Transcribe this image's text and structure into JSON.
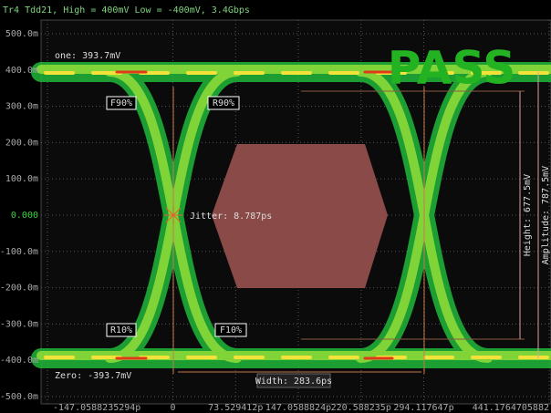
{
  "chart_data": {
    "type": "eye",
    "title": "Tr4 Tdd21, High = 400mV Low = -400mV, 3.4Gbps",
    "xlim": [
      -147.0588235294,
      441.1764705882
    ],
    "xticks": [
      {
        "value": -147.0588235294,
        "label": "-147.0588235294p"
      },
      0,
      {
        "value": 73.529412,
        "label": "73.529412p"
      },
      {
        "value": 147.0588824,
        "label": "147.0588824p"
      },
      {
        "value": 220.588235,
        "label": "220.588235p"
      },
      {
        "value": 294.117647,
        "label": "294.117647p"
      },
      441.1764705882
    ],
    "ylim": [
      -0.5,
      0.5
    ],
    "yticks": [
      {
        "value": 0.5,
        "label": "500.0m"
      },
      {
        "value": 0.4,
        "label": "400.0m"
      },
      {
        "value": 0.3,
        "label": "300.0m"
      },
      {
        "value": 0.2,
        "label": "200.0m"
      },
      {
        "value": 0.1,
        "label": "100.0m"
      },
      {
        "value": 0,
        "label": "0.000"
      },
      {
        "value": -0.1,
        "label": "-100.0m"
      },
      {
        "value": -0.2,
        "label": "-200.0m"
      },
      {
        "value": -0.3,
        "label": "-300.0m"
      },
      {
        "value": -0.4,
        "label": "-400.0m"
      },
      {
        "value": -0.5,
        "label": "-500.0m"
      }
    ],
    "grid": true,
    "annotations": {
      "one_level": "one: 393.7mV",
      "zero_level": "Zero: -393.7mV",
      "f90": "F90%",
      "r90": "R90%",
      "r10": "R10%",
      "f10": "F10%",
      "jitter": "Jitter: 8.787ps",
      "width": "Width: 283.6ps",
      "height": "Height: 677.5mV",
      "amplitude": "Amplitude: 787.5mV",
      "verdict": "PASS"
    }
  }
}
